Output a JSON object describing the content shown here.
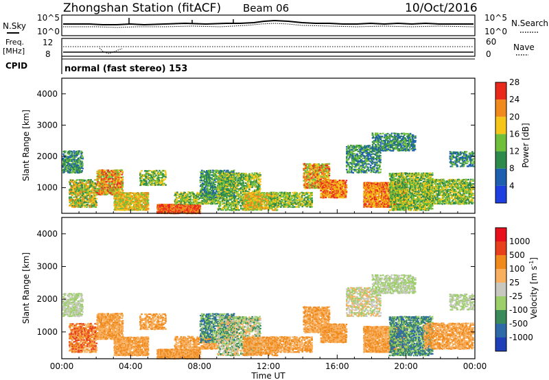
{
  "header": {
    "station": "Zhongshan Station (fitACF)",
    "beam": "Beam 06",
    "date": "10/Oct/2016"
  },
  "top_panels": {
    "nsky_label": "N.Sky",
    "nsky_ticks": [
      "10^5",
      "10^0"
    ],
    "nsearch_label": "N.Search",
    "nsearch_ticks": [
      "10^5",
      "10^0"
    ],
    "freq_label": "Freq.",
    "freq_unit": "[MHz]",
    "freq_ticks": [
      "12",
      "8"
    ],
    "nave_label": "Nave",
    "nave_ticks": [
      "60",
      "0"
    ],
    "cpid_label": "CPID",
    "cpid_value": "normal (fast stereo) 153"
  },
  "chart_data": [
    {
      "type": "heatmap",
      "quantity": "Power",
      "ylabel": "Slant Range [km]",
      "ylim": [
        180,
        4500
      ],
      "y_ticks": [
        "1000",
        "2000",
        "3000",
        "4000"
      ],
      "x_ticks": [
        "00:00",
        "04:00",
        "08:00",
        "12:00",
        "16:00",
        "20:00",
        "00:00"
      ],
      "colorbar_label": "Power [dB]",
      "colorbar_ticks": [
        "4",
        "8",
        "12",
        "16",
        "20",
        "24",
        "28"
      ],
      "colorbar_colors": [
        "#1f3fe0",
        "#1e5fb0",
        "#2e8a4a",
        "#6fbf3a",
        "#f5c518",
        "#f08a1c",
        "#e8291c"
      ]
    },
    {
      "type": "heatmap",
      "quantity": "Velocity",
      "ylabel": "Slant Range [km]",
      "ylim": [
        180,
        4500
      ],
      "y_ticks": [
        "1000",
        "2000",
        "3000",
        "4000"
      ],
      "x_ticks": [
        "00:00",
        "04:00",
        "08:00",
        "12:00",
        "16:00",
        "20:00",
        "00:00"
      ],
      "xlabel": "Time UT",
      "colorbar_label": "Velocity [m s",
      "colorbar_unit_exp": "-1",
      "colorbar_unit_close": "]",
      "colorbar_ticks": [
        "1000",
        "500",
        "100",
        "25",
        "-25",
        "-100",
        "-500",
        "-1000"
      ],
      "colorbar_colors": [
        "#1f3fb8",
        "#2e6aa8",
        "#3a8a5a",
        "#9ccf6a",
        "#c8c8c0",
        "#f8b060",
        "#f08a1c",
        "#e8401c",
        "#e8101c"
      ]
    }
  ]
}
